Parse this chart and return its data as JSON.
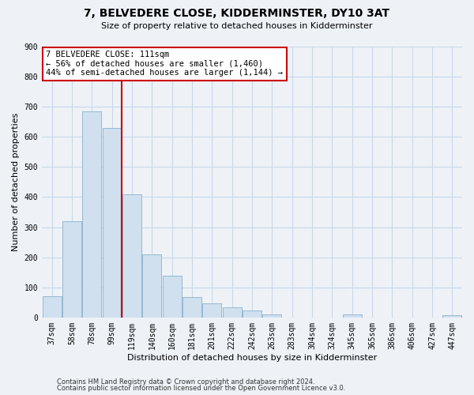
{
  "title": "7, BELVEDERE CLOSE, KIDDERMINSTER, DY10 3AT",
  "subtitle": "Size of property relative to detached houses in Kidderminster",
  "xlabel": "Distribution of detached houses by size in Kidderminster",
  "ylabel": "Number of detached properties",
  "bar_labels": [
    "37sqm",
    "58sqm",
    "78sqm",
    "99sqm",
    "119sqm",
    "140sqm",
    "160sqm",
    "181sqm",
    "201sqm",
    "222sqm",
    "242sqm",
    "263sqm",
    "283sqm",
    "304sqm",
    "324sqm",
    "345sqm",
    "365sqm",
    "386sqm",
    "406sqm",
    "427sqm",
    "447sqm"
  ],
  "bar_values": [
    70,
    320,
    685,
    630,
    410,
    210,
    138,
    68,
    48,
    35,
    22,
    10,
    0,
    0,
    0,
    10,
    0,
    0,
    0,
    0,
    8
  ],
  "bar_color": "#d0e0ef",
  "bar_edge_color": "#8ab0cc",
  "vline_color": "#cc0000",
  "vline_x": 3.5,
  "annotation_line1": "7 BELVEDERE CLOSE: 111sqm",
  "annotation_line2": "← 56% of detached houses are smaller (1,460)",
  "annotation_line3": "44% of semi-detached houses are larger (1,144) →",
  "box_facecolor": "#ffffff",
  "box_edgecolor": "#cc0000",
  "ylim": [
    0,
    900
  ],
  "yticks": [
    0,
    100,
    200,
    300,
    400,
    500,
    600,
    700,
    800,
    900
  ],
  "footer_line1": "Contains HM Land Registry data © Crown copyright and database right 2024.",
  "footer_line2": "Contains public sector information licensed under the Open Government Licence v3.0.",
  "grid_color": "#c8d8e8",
  "plot_bg_color": "#eef2f7",
  "fig_bg_color": "#eef2f7",
  "title_fontsize": 10,
  "subtitle_fontsize": 8,
  "tick_fontsize": 7,
  "ylabel_fontsize": 8,
  "xlabel_fontsize": 8,
  "annotation_fontsize": 7.5,
  "footer_fontsize": 6
}
